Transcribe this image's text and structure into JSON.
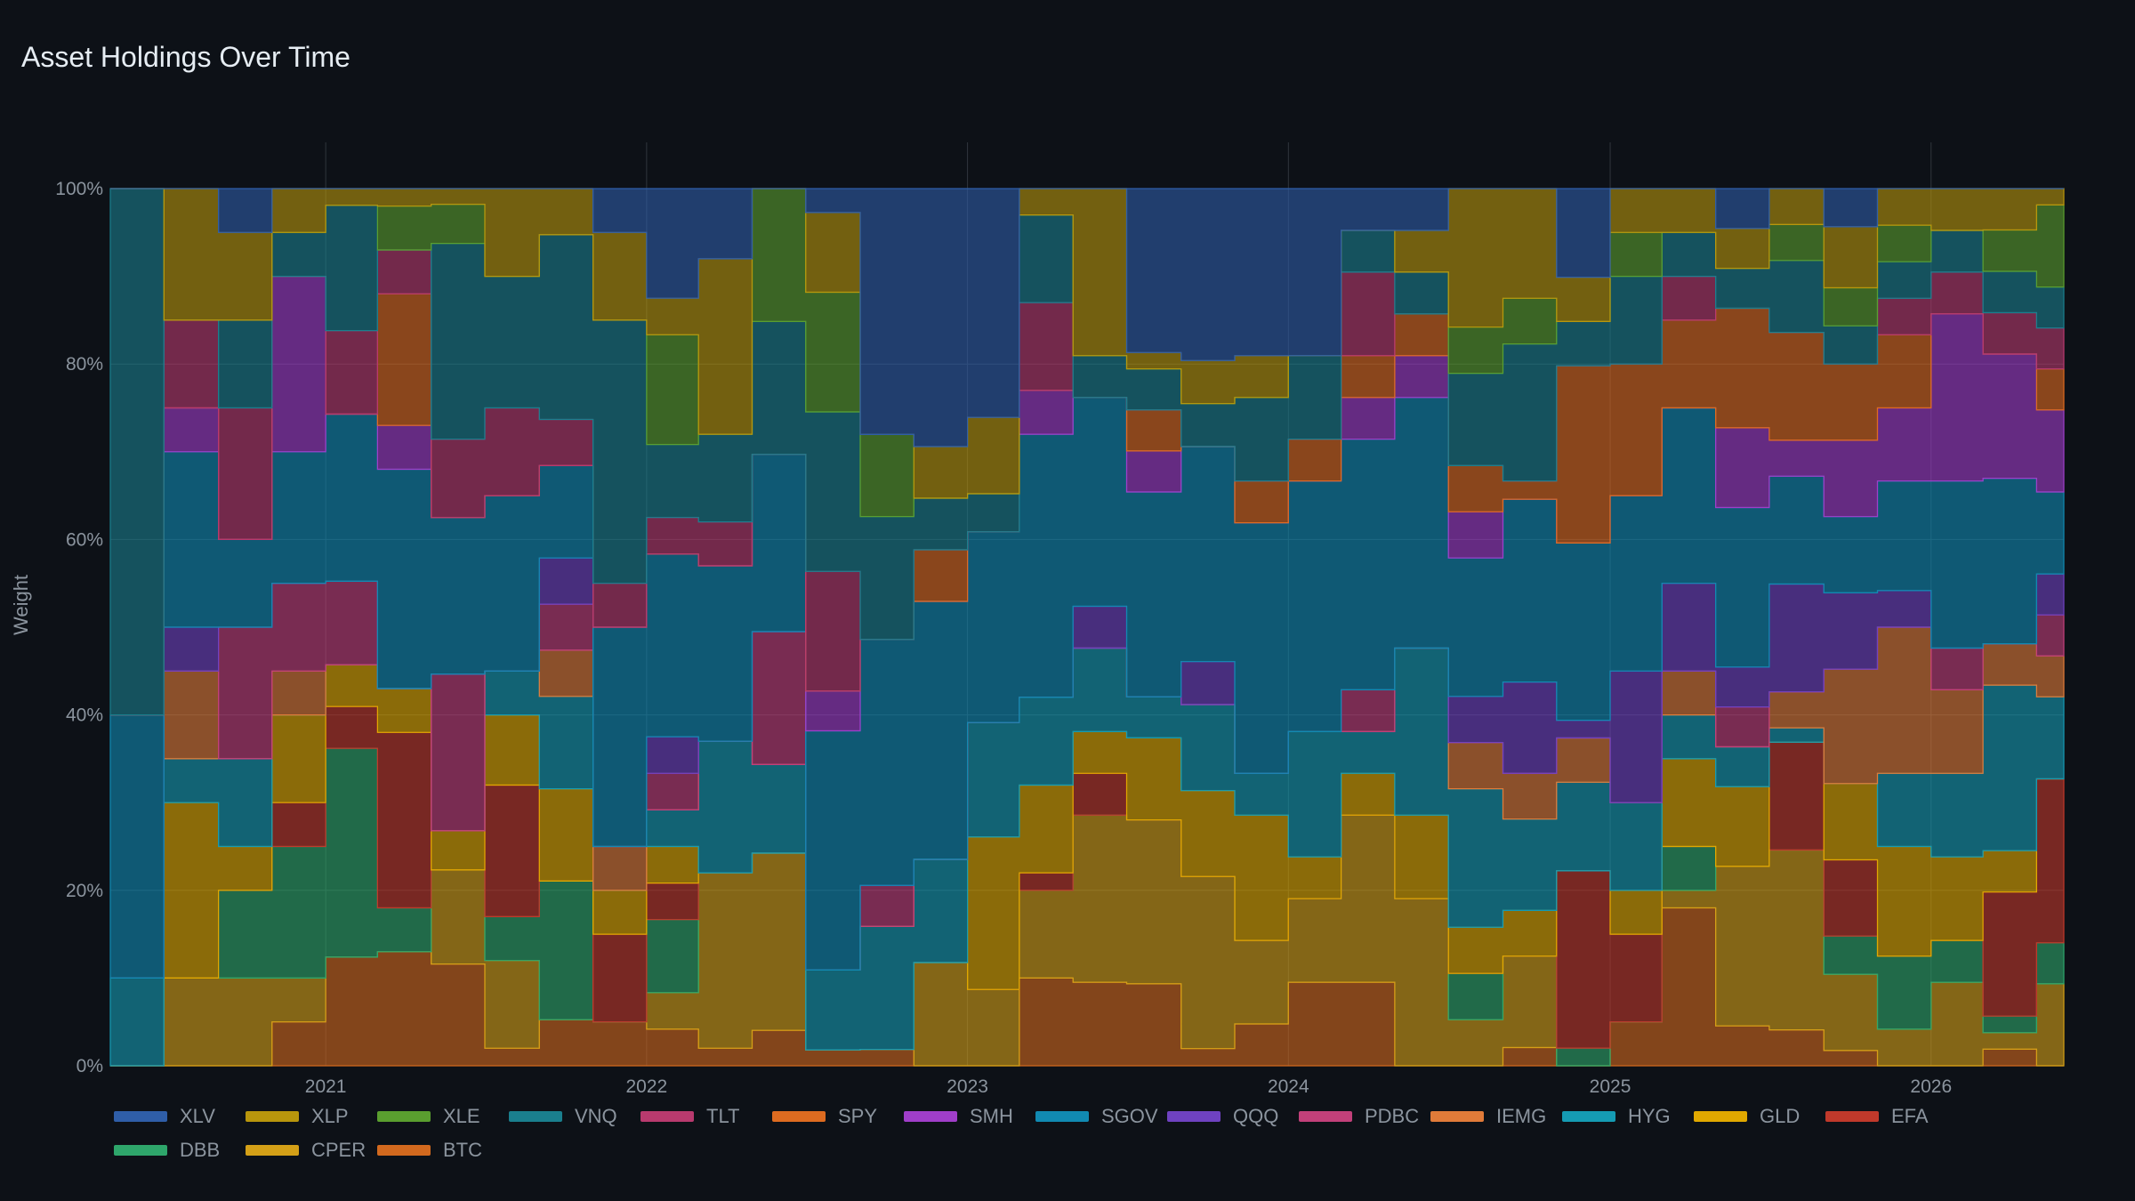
{
  "title": "Asset Holdings Over Time",
  "chart_data": {
    "type": "area",
    "stacked": "percent",
    "ylabel": "Weight",
    "xlabel": "",
    "yticks": [
      "0%",
      "20%",
      "40%",
      "60%",
      "80%",
      "100%"
    ],
    "ylim": [
      0,
      1
    ],
    "xlim": [
      "2020-05-01",
      "2026-06-01"
    ],
    "xticks": [
      "2021",
      "2022",
      "2023",
      "2024",
      "2025",
      "2026"
    ],
    "grid": true,
    "legend_position": "bottom",
    "x": [
      "2020-05",
      "2020-07",
      "2020-09",
      "2020-11",
      "2021-01",
      "2021-03",
      "2021-05",
      "2021-07",
      "2021-09",
      "2021-11",
      "2022-01",
      "2022-03",
      "2022-05",
      "2022-07",
      "2022-09",
      "2022-11",
      "2023-01",
      "2023-03",
      "2023-05",
      "2023-07",
      "2023-09",
      "2023-11",
      "2024-01",
      "2024-03",
      "2024-05",
      "2024-07",
      "2024-09",
      "2024-11",
      "2025-01",
      "2025-03",
      "2025-05",
      "2025-07",
      "2025-09",
      "2025-11",
      "2026-01",
      "2026-03",
      "2026-05"
    ],
    "series": [
      {
        "name": "BTC",
        "color": "#d2691e",
        "values": [
          0,
          0,
          0,
          0.05,
          0.13,
          0.13,
          0.13,
          0.02,
          0.05,
          0.05,
          0.05,
          0.02,
          0.04,
          0.02,
          0.02,
          0,
          0,
          0.1,
          0.1,
          0.1,
          0.02,
          0.05,
          0.1,
          0.1,
          0,
          0,
          0.02,
          0,
          0.05,
          0.18,
          0.05,
          0.05,
          0.02,
          0,
          0,
          0.02,
          0
        ]
      },
      {
        "name": "CPER",
        "color": "#d4a017",
        "values": [
          0,
          0.1,
          0.1,
          0.05,
          0,
          0,
          0.12,
          0.1,
          0,
          0,
          0.05,
          0.2,
          0.2,
          0,
          0,
          0.1,
          0.1,
          0.1,
          0.2,
          0.2,
          0.2,
          0.1,
          0.1,
          0.2,
          0.2,
          0.05,
          0.1,
          0,
          0,
          0.02,
          0.2,
          0.25,
          0.1,
          0.05,
          0.1,
          0.02,
          0.1
        ]
      },
      {
        "name": "DBB",
        "color": "#2ea66b",
        "values": [
          0,
          0,
          0.1,
          0.15,
          0.25,
          0.05,
          0,
          0.05,
          0.15,
          0,
          0.1,
          0,
          0,
          0,
          0,
          0,
          0,
          0,
          0,
          0,
          0,
          0,
          0,
          0,
          0,
          0.05,
          0,
          0.02,
          0,
          0.05,
          0,
          0,
          0.05,
          0.1,
          0.05,
          0.02,
          0.05
        ]
      },
      {
        "name": "EFA",
        "color": "#c0392b",
        "values": [
          0,
          0,
          0,
          0.05,
          0.05,
          0.2,
          0,
          0.15,
          0,
          0.1,
          0.05,
          0,
          0,
          0,
          0,
          0,
          0,
          0.02,
          0.05,
          0,
          0,
          0,
          0,
          0,
          0,
          0,
          0,
          0.2,
          0.1,
          0,
          0,
          0.15,
          0.1,
          0,
          0,
          0.15,
          0.2
        ]
      },
      {
        "name": "GLD",
        "color": "#e0a800",
        "values": [
          0,
          0.2,
          0.05,
          0.1,
          0.05,
          0.05,
          0.05,
          0.08,
          0.1,
          0.05,
          0.05,
          0,
          0,
          0,
          0,
          0,
          0.2,
          0.1,
          0.05,
          0.1,
          0.1,
          0.15,
          0.05,
          0.05,
          0.1,
          0.05,
          0.05,
          0,
          0.05,
          0.1,
          0.1,
          0,
          0.1,
          0.15,
          0.1,
          0.05,
          0
        ]
      },
      {
        "name": "HYG",
        "color": "#159bb3",
        "values": [
          0.1,
          0.05,
          0.1,
          0,
          0,
          0,
          0,
          0.05,
          0.1,
          0,
          0.05,
          0.15,
          0.1,
          0.1,
          0.15,
          0.1,
          0.15,
          0.1,
          0.1,
          0.05,
          0.1,
          0.05,
          0.15,
          0.05,
          0.2,
          0.15,
          0.1,
          0.1,
          0.1,
          0.05,
          0.05,
          0.02,
          0,
          0.1,
          0.1,
          0.2,
          0.1
        ]
      },
      {
        "name": "IEMG",
        "color": "#e07b39",
        "values": [
          0,
          0.1,
          0,
          0.05,
          0,
          0,
          0,
          0,
          0.05,
          0.05,
          0,
          0,
          0,
          0,
          0,
          0,
          0,
          0,
          0,
          0,
          0,
          0,
          0,
          0,
          0,
          0.05,
          0.05,
          0.05,
          0,
          0.05,
          0,
          0.05,
          0.15,
          0.2,
          0.1,
          0.05,
          0.05
        ]
      },
      {
        "name": "PDBC",
        "color": "#c2407a",
        "values": [
          0,
          0,
          0.15,
          0.1,
          0.1,
          0,
          0.2,
          0,
          0.05,
          0,
          0.05,
          0,
          0.15,
          0,
          0.05,
          0,
          0,
          0,
          0,
          0,
          0,
          0,
          0,
          0.05,
          0,
          0,
          0,
          0,
          0,
          0,
          0.05,
          0,
          0,
          0,
          0.05,
          0,
          0.05
        ]
      },
      {
        "name": "QQQ",
        "color": "#6f42c1",
        "values": [
          0,
          0.05,
          0,
          0,
          0,
          0,
          0,
          0,
          0.05,
          0,
          0.05,
          0,
          0,
          0,
          0,
          0,
          0,
          0,
          0.05,
          0,
          0.05,
          0,
          0,
          0,
          0,
          0.05,
          0.1,
          0.02,
          0.15,
          0.1,
          0.05,
          0.15,
          0.1,
          0.05,
          0,
          0,
          0.05
        ]
      },
      {
        "name": "SGOV",
        "color": "#118ab2",
        "values": [
          0.3,
          0.2,
          0.1,
          0.15,
          0.2,
          0.25,
          0.2,
          0.2,
          0.1,
          0.25,
          0.25,
          0.2,
          0.2,
          0.3,
          0.3,
          0.25,
          0.25,
          0.3,
          0.25,
          0.25,
          0.25,
          0.3,
          0.3,
          0.3,
          0.3,
          0.15,
          0.2,
          0.2,
          0.2,
          0.2,
          0.2,
          0.15,
          0.1,
          0.15,
          0.2,
          0.2,
          0.1
        ]
      },
      {
        "name": "SMH",
        "color": "#a03ec9",
        "values": [
          0,
          0.05,
          0,
          0.2,
          0,
          0.05,
          0,
          0,
          0,
          0,
          0,
          0,
          0,
          0.05,
          0,
          0,
          0,
          0.05,
          0,
          0.05,
          0,
          0,
          0,
          0.05,
          0.05,
          0.05,
          0,
          0,
          0,
          0,
          0.1,
          0.05,
          0.1,
          0.1,
          0.2,
          0.15,
          0.1
        ]
      },
      {
        "name": "SPY",
        "color": "#dd6b20",
        "values": [
          0,
          0,
          0,
          0,
          0,
          0.15,
          0,
          0,
          0,
          0,
          0,
          0,
          0,
          0,
          0,
          0.05,
          0,
          0,
          0,
          0.05,
          0,
          0.05,
          0.05,
          0.05,
          0.05,
          0.05,
          0.02,
          0.2,
          0.15,
          0.1,
          0.15,
          0.15,
          0.1,
          0.1,
          0,
          0,
          0.05
        ]
      },
      {
        "name": "TLT",
        "color": "#b83a6e",
        "values": [
          0,
          0.1,
          0.15,
          0,
          0.1,
          0.05,
          0.1,
          0.1,
          0.05,
          0.05,
          0.05,
          0.05,
          0,
          0.15,
          0,
          0,
          0,
          0.1,
          0,
          0,
          0,
          0,
          0,
          0.1,
          0,
          0,
          0,
          0,
          0,
          0.05,
          0,
          0,
          0,
          0.05,
          0.05,
          0.05,
          0.05
        ]
      },
      {
        "name": "VNQ",
        "color": "#1a7f8e",
        "values": [
          0.6,
          0,
          0.1,
          0.05,
          0.15,
          0,
          0.25,
          0.15,
          0.2,
          0.3,
          0.1,
          0.1,
          0.15,
          0.2,
          0.15,
          0.05,
          0.05,
          0.1,
          0.05,
          0.05,
          0.05,
          0.1,
          0.1,
          0.05,
          0.05,
          0.1,
          0.15,
          0.05,
          0.1,
          0.05,
          0.05,
          0.1,
          0.05,
          0.05,
          0.05,
          0.05,
          0.05
        ]
      },
      {
        "name": "XLE",
        "color": "#5a9e2f",
        "values": [
          0,
          0,
          0,
          0,
          0,
          0.05,
          0.05,
          0,
          0,
          0,
          0.15,
          0,
          0.15,
          0.15,
          0.1,
          0,
          0,
          0,
          0,
          0,
          0,
          0,
          0,
          0,
          0,
          0.05,
          0.05,
          0,
          0.05,
          0,
          0,
          0.05,
          0.05,
          0.05,
          0,
          0.05,
          0.1
        ]
      },
      {
        "name": "XLP",
        "color": "#b8960c",
        "values": [
          0,
          0.15,
          0.1,
          0.05,
          0.02,
          0.02,
          0.02,
          0.1,
          0.05,
          0.1,
          0.05,
          0.2,
          0,
          0.1,
          0,
          0.05,
          0.1,
          0.03,
          0.2,
          0.02,
          0.05,
          0.05,
          0,
          0,
          0.05,
          0.15,
          0.12,
          0.05,
          0.05,
          0.05,
          0.05,
          0.05,
          0.08,
          0.05,
          0.05,
          0.05,
          0.02
        ]
      },
      {
        "name": "XLV",
        "color": "#2f5ea8",
        "values": [
          0,
          0,
          0.05,
          0,
          0,
          0,
          0,
          0,
          0,
          0.05,
          0.15,
          0.08,
          0,
          0.03,
          0.3,
          0.25,
          0.3,
          0,
          0,
          0.2,
          0.2,
          0.2,
          0.2,
          0.05,
          0.05,
          0,
          0,
          0.1,
          0,
          0,
          0.05,
          0,
          0.05,
          0,
          0,
          0,
          0
        ]
      }
    ]
  },
  "legend": [
    {
      "label": "XLV",
      "color": "#2f5ea8"
    },
    {
      "label": "XLP",
      "color": "#b8960c"
    },
    {
      "label": "XLE",
      "color": "#5a9e2f"
    },
    {
      "label": "VNQ",
      "color": "#1a7f8e"
    },
    {
      "label": "TLT",
      "color": "#b83a6e"
    },
    {
      "label": "SPY",
      "color": "#dd6b20"
    },
    {
      "label": "SMH",
      "color": "#a03ec9"
    },
    {
      "label": "SGOV",
      "color": "#118ab2"
    },
    {
      "label": "QQQ",
      "color": "#6f42c1"
    },
    {
      "label": "PDBC",
      "color": "#c2407a"
    },
    {
      "label": "IEMG",
      "color": "#e07b39"
    },
    {
      "label": "HYG",
      "color": "#159bb3"
    },
    {
      "label": "GLD",
      "color": "#e0a800"
    },
    {
      "label": "EFA",
      "color": "#c0392b"
    },
    {
      "label": "DBB",
      "color": "#2ea66b"
    },
    {
      "label": "CPER",
      "color": "#d4a017"
    },
    {
      "label": "BTC",
      "color": "#d2691e"
    }
  ]
}
